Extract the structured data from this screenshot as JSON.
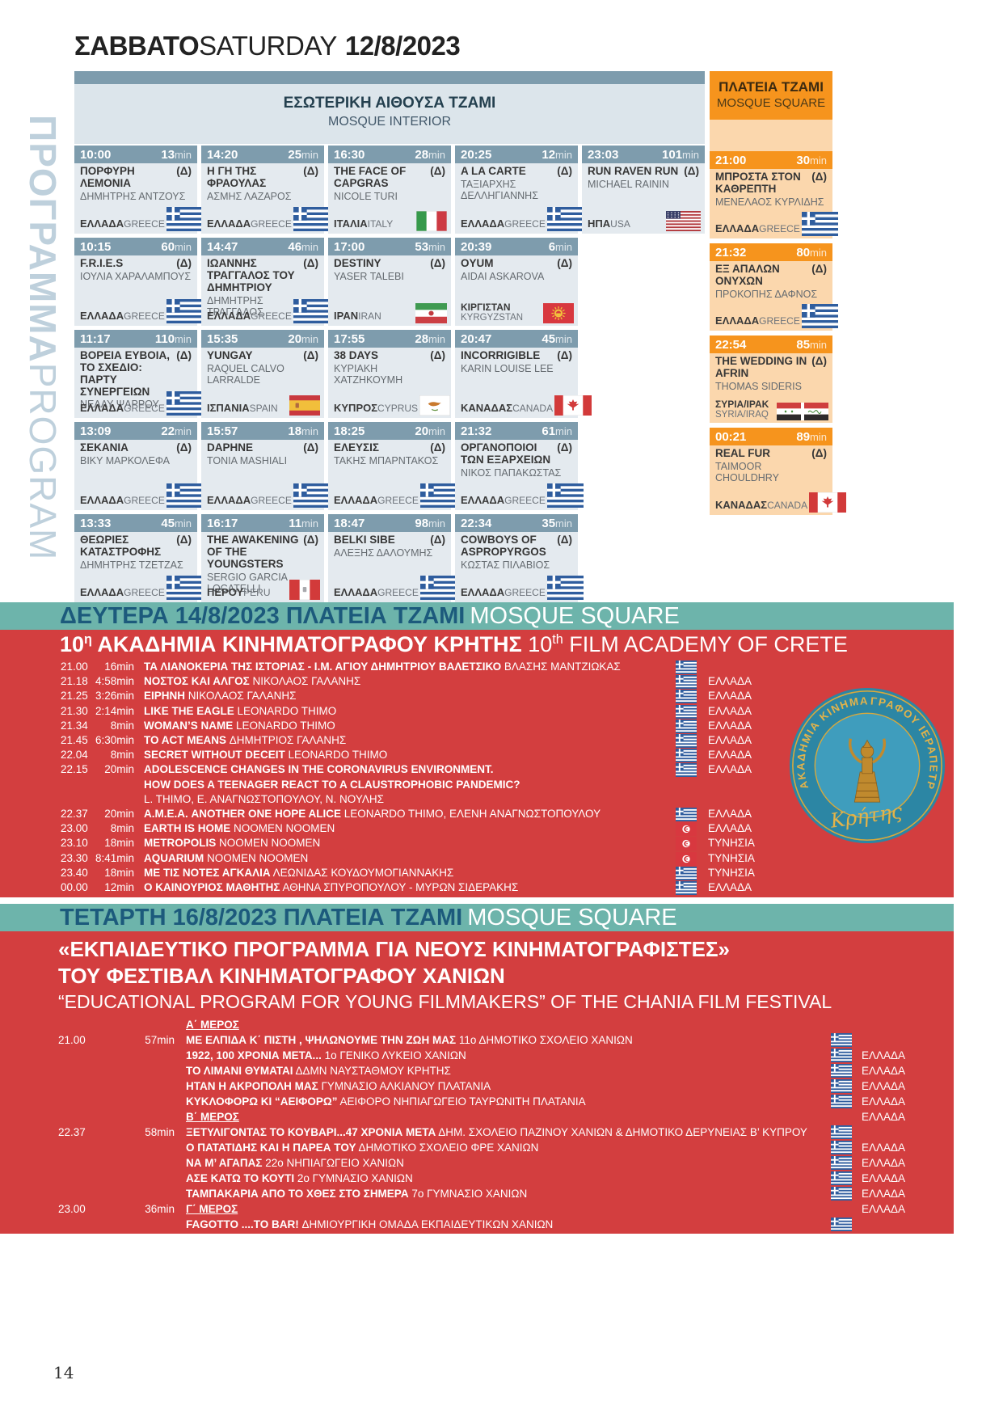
{
  "colors": {
    "steel_blue": "#7e9cad",
    "panel_blue": "#dce5eb",
    "cell_blue": "#e4eaef",
    "orange": "#f6941d",
    "peach": "#fbd7ad",
    "red": "#d33e3f",
    "teal": "#6db4ab",
    "band_text_blue": "#1c5a7c",
    "vertical_label_blue": "#bed0dc",
    "logo_gold": "#e3b34a"
  },
  "page_header": {
    "day_gr": "ΣΑΒΒΑΤΟ",
    "day_en": "SATURDAY",
    "date": "12/8/2023"
  },
  "vertical_label": {
    "gr": "ΠΡΟΓΡΑΜΜΑ",
    "en": "PROGRAM"
  },
  "interior_header": {
    "gr": "ΕΣΩΤΕΡΙΚΗ ΑΙΘΟΥΣΑ ΤΖΑΜΙ",
    "en": "MOSQUE INTERIOR"
  },
  "square_header": {
    "gr": "ΠΛΑΤΕΙΑ ΤΖΑΜΙ",
    "en": "MOSQUE SQUARE"
  },
  "grid": {
    "interior_columns": [
      [
        {
          "time": "10:00",
          "dur": "13",
          "title": "ΠΟΡΦΥΡΗ ΛΕΜΟΝΙΑ",
          "delta": "(Δ)",
          "director": "ΔΗΜΗΤΡΗΣ ΑΝΤΖΟΥΣ",
          "country_gr": "ΕΛΛΑΔΑ",
          "country_en": "GREECE",
          "flag": "gr"
        },
        {
          "time": "10:15",
          "dur": "60",
          "title": "F.R.I.E.S",
          "delta": "(Δ)",
          "director": "ΙΟΥΛΙΑ ΧΑΡΑΛΑΜΠΟΥΣ",
          "country_gr": "ΕΛΛΑΔΑ",
          "country_en": "GREECE",
          "flag": "gr"
        },
        {
          "time": "11:17",
          "dur": "110",
          "title": "ΒΟΡΕΙΑ ΕΥΒΟΙΑ, ΤΟ ΣΧΕΔΙΟ: ΠΑΡΤΥ ΣΥΝΕΡΓΕΙΩΝ",
          "delta": "(Δ)",
          "director": "ΝΕΛΛΥ ΨΑΡΡΟΥ",
          "country_gr": "ΕΛΛΑΔΑ",
          "country_en": "GREECE",
          "flag": "gr"
        },
        {
          "time": "13:09",
          "dur": "22",
          "title": "ΣΕΚΑΝΙΑ",
          "delta": "(Δ)",
          "director": "ΒΙΚΥ ΜΑΡΚΟΛΕΦΑ",
          "country_gr": "ΕΛΛΑΔΑ",
          "country_en": "GREECE",
          "flag": "gr"
        },
        {
          "time": "13:33",
          "dur": "45",
          "title": "ΘΕΩΡΙΕΣ ΚΑΤΑΣΤΡΟΦΗΣ",
          "delta": "(Δ)",
          "director": "ΔΗΜΗΤΡΗΣ ΤΖΕΤΖΑΣ",
          "country_gr": "ΕΛΛΑΔΑ",
          "country_en": "GREECE",
          "flag": "gr"
        }
      ],
      [
        {
          "time": "14:20",
          "dur": "25",
          "title": "Η ΓΗ ΤΗΣ ΦΡΑΟΥΛΑΣ",
          "delta": "(Δ)",
          "director": "ΑΣΜΗΣ ΛΑΖΑΡΟΣ",
          "country_gr": "ΕΛΛΑΔΑ",
          "country_en": "GREECE",
          "flag": "gr"
        },
        {
          "time": "14:47",
          "dur": "46",
          "title": "ΙΩΑΝΝΗΣ ΤΡΑΓΓΑΛΟΣ ΤΟΥ ΔΗΜΗΤΡΙΟΥ",
          "delta": "(Δ)",
          "director": "ΔΗΜΗΤΡΗΣ ΤΡΑΓΓΑΛΟΣ",
          "country_gr": "ΕΛΛΑΔΑ",
          "country_en": "GREECE",
          "flag": "gr"
        },
        {
          "time": "15:35",
          "dur": "20",
          "title": "YUNGAY",
          "delta": "(Δ)",
          "director": "RAQUEL CALVO LARRALDE",
          "country_gr": "ΙΣΠΑΝΙΑ",
          "country_en": "SPAIN",
          "flag": "es"
        },
        {
          "time": "15:57",
          "dur": "18",
          "title": "DAPHNE",
          "delta": "(Δ)",
          "director": "TONIA MASHIALI",
          "country_gr": "ΕΛΛΑΔΑ",
          "country_en": "GREECE",
          "flag": "gr"
        },
        {
          "time": "16:17",
          "dur": "11",
          "title": "THE AWAKENING OF THE YOUNGSTERS",
          "delta": "(Δ)",
          "director": "SERGIO GARCIA LOCATELLI",
          "country_gr": "ΠΕΡΟΥ",
          "country_en": "PERU",
          "flag": "pe"
        }
      ],
      [
        {
          "time": "16:30",
          "dur": "28",
          "title": "THE FACE OF CAPGRAS",
          "delta": "(Δ)",
          "director": "NICOLE TURI",
          "country_gr": "ΙΤΑΛΙΑ",
          "country_en": "ITALY",
          "flag": "it"
        },
        {
          "time": "17:00",
          "dur": "53",
          "title": "DESTINY",
          "delta": "(Δ)",
          "director": "YASER TALEBI",
          "country_gr": "ΙΡΑΝ",
          "country_en": "IRAN",
          "flag": "ir"
        },
        {
          "time": "17:55",
          "dur": "28",
          "title": "38 DAYS",
          "delta": "(Δ)",
          "director": "ΚΥΡΙΑΚΗ ΧΑΤΖΗΚΟΥΜΗ",
          "country_gr": "ΚΥΠΡΟΣ",
          "country_en": "CYPRUS",
          "flag": "cy"
        },
        {
          "time": "18:25",
          "dur": "20",
          "title": "ΕΛΕΥΣΙΣ",
          "delta": "(Δ)",
          "director": "ΤΑΚΗΣ ΜΠΑΡΝΤΑΚΟΣ",
          "country_gr": "ΕΛΛΑΔΑ",
          "country_en": "GREECE",
          "flag": "gr"
        },
        {
          "time": "18:47",
          "dur": "98",
          "title": "BELKI SIBE",
          "delta": "(Δ)",
          "director": "ΑΛΕΞΗΣ ΔΑΛΟΥΜΗΣ",
          "country_gr": "ΕΛΛΑΔΑ",
          "country_en": "GREECE",
          "flag": "gr"
        }
      ],
      [
        {
          "time": "20:25",
          "dur": "12",
          "title": "A LA CARTE",
          "delta": "(Δ)",
          "director": "ΤΑΞΙΑΡΧΗΣ ΔΕΛΛΗΓΙΑΝΝΗΣ",
          "country_gr": "ΕΛΛΑΔΑ",
          "country_en": "GREECE",
          "flag": "gr"
        },
        {
          "time": "20:39",
          "dur": "6",
          "title": "OYUM",
          "delta": "(Δ)",
          "director": "AIDAI ASKAROVA",
          "country_gr": "ΚΙΡΓΙΣΤΑΝ",
          "country_en": "KYRGYZSTAN",
          "flag": "kg",
          "country_two": true
        },
        {
          "time": "20:47",
          "dur": "45",
          "title": "INCORRIGIBLE",
          "delta": "(Δ)",
          "director": "KARIN LOUISE LEE",
          "country_gr": "ΚΑΝΑΔΑΣ",
          "country_en": "CANADA",
          "flag": "ca"
        },
        {
          "time": "21:32",
          "dur": "61",
          "title": "ΟΡΓΑΝΟΠΟΙΟΙ ΤΩΝ ΕΞΑΡΧΕΙΩΝ",
          "delta": "(Δ)",
          "director": "ΝΙΚΟΣ ΠΑΠΑΚΩΣΤΑΣ",
          "country_gr": "ΕΛΛΑΔΑ",
          "country_en": "GREECE",
          "flag": "gr"
        },
        {
          "time": "22:34",
          "dur": "35",
          "title": "COWBOYS OF ASPROPYRGOS",
          "delta": "(Δ)",
          "director": "ΚΩΣΤΑΣ ΠΙΛΑΒΙΟΣ",
          "country_gr": "ΕΛΛΑΔΑ",
          "country_en": "GREECE",
          "flag": "gr"
        }
      ],
      [
        {
          "time": "23:03",
          "dur": "101",
          "title": "RUN RAVEN RUN",
          "delta": "(Δ)",
          "director": "MICHAEL RAININ",
          "country_gr": "ΗΠΑ",
          "country_en": "USA",
          "flag": "us"
        }
      ]
    ],
    "square_column": [
      {
        "time": "21:00",
        "dur": "30",
        "title": "ΜΠΡΟΣΤΑ ΣΤΟΝ ΚΑΘΡΕΠΤΗ",
        "delta": "(Δ)",
        "director": "ΜΕΝΕΛΑΟΣ ΚΥΡΛΙΔΗΣ",
        "country_gr": "ΕΛΛΑΔΑ",
        "country_en": "GREECE",
        "flag": "gr"
      },
      {
        "time": "21:32",
        "dur": "80",
        "title": "ΕΞ ΑΠΑΛΩΝ ΟΝΥΧΩΝ",
        "delta": "(Δ)",
        "director": "ΠΡΟΚΟΠΗΣ ΔΑΦΝΟΣ",
        "country_gr": "ΕΛΛΑΔΑ",
        "country_en": "GREECE",
        "flag": "gr"
      },
      {
        "time": "22:54",
        "dur": "85",
        "title": "THE WEDDING IN AFRIN",
        "delta": "(Δ)",
        "director": "THOMAS SIDERIS",
        "country_gr": "ΣΥΡΙΑ/ΙΡΑΚ",
        "country_en": "SYRIA/IRAQ",
        "flag": "sy-iq",
        "country_two": true
      },
      {
        "time": "00:21",
        "dur": "89",
        "title": "REAL FUR",
        "delta": "(Δ)",
        "director": "TAIMOOR CHOULDHRY",
        "country_gr": "ΚΑΝΑΔΑΣ",
        "country_en": "CANADA",
        "flag": "ca"
      }
    ]
  },
  "monday": {
    "banner_gr": "ΔΕΥΤΕΡΑ 14/8/2023 ΠΛΑΤΕΙΑ ΤΖΑΜΙ",
    "banner_en": "MOSQUE SQUARE",
    "title_gr_num": "10",
    "title_gr_sup": "η",
    "title_gr_rest": " ΑΚΑΔΗΜΙΑ ΚΙΝΗΜΑΤΟΓΡΑΦΟΥ ΚΡΗΤΗΣ",
    "title_en_num": "10",
    "title_en_sup": "th",
    "title_en_rest": " FILM ACADEMY OF CRETE",
    "rows": [
      {
        "time": "21.00",
        "dur": "16min",
        "lines": [
          {
            "b": "ΤΑ ΛΙΑΝΟΚΕΡΙΑ ΤΗΣ ΙΣΤΟΡΙΑΣ - Ι.Μ. ΑΓΙΟΥ ΔΗΜΗΤΡΙΟΥ ΒΑΛΕΤΣΙΚΟ",
            "r": " ΒΛΑΣΗΣ ΜΑΝΤΖΙΩΚΑΣ"
          }
        ],
        "country": "ΕΛΛΑΔΑ",
        "flag": "gr"
      },
      {
        "time": "21.18",
        "dur": "4:58min",
        "lines": [
          {
            "b": "ΝΟΣΤΟΣ ΚΑΙ ΑΛΓΟΣ",
            "r": " ΝΙΚΟΛΑΟΣ ΓΑΛΑΝΗΣ"
          }
        ],
        "country": "ΕΛΛΑΔΑ",
        "flag": "gr"
      },
      {
        "time": "21.25",
        "dur": "3:26min",
        "lines": [
          {
            "b": "ΕΙΡΗΝΗ",
            "r": " ΝΙΚΟΛΑΟΣ ΓΑΛΑΝΗΣ"
          }
        ],
        "country": "ΕΛΛΑΔΑ",
        "flag": "gr"
      },
      {
        "time": "21.30",
        "dur": "2:14min",
        "lines": [
          {
            "b": "LIKE THE EAGLE",
            "r": " LEONARDO THIMO"
          }
        ],
        "country": "ΕΛΛΑΔΑ",
        "flag": "gr"
      },
      {
        "time": "21.34",
        "dur": "8min",
        "lines": [
          {
            "b": "WOMAN’S NAME",
            "r": " LEONARDO THIMO"
          }
        ],
        "country": "ΕΛΛΑΔΑ",
        "flag": "gr"
      },
      {
        "time": "21.45",
        "dur": "6:30min",
        "lines": [
          {
            "b": "TO ACT MEANS",
            "r": " ΔΗΜΗΤΡΙΟΣ ΓΑΛΑΝΗΣ"
          }
        ],
        "country": "ΕΛΛΑΔΑ",
        "flag": "gr"
      },
      {
        "time": "22.04",
        "dur": "8min",
        "lines": [
          {
            "b": "SECRET WITHOUT DECEIT",
            "r": " LEONARDO THIMO"
          }
        ],
        "country": "ΕΛΛΑΔΑ",
        "flag": "gr"
      },
      {
        "time": "22.15",
        "dur": "20min",
        "lines": [
          {
            "b": "ADOLESCENCE CHANGES IN THE CORONAVIRUS ENVIRONMENT."
          },
          {
            "b": "HOW DOES A TEENAGER REACT TO A CLAUSTROPHOBIC PANDEMIC?"
          },
          {
            "r": "L. THIMO, Ε. ΑΝΑΓΝΩΣΤΟΠΟΥΛΟΥ, Ν. ΝΟΥΛΗΣ"
          }
        ],
        "country": "ΕΛΛΑΔΑ",
        "flag": "gr"
      },
      {
        "time": "22.37",
        "dur": "20min",
        "lines": [
          {
            "b": "Α.Μ.Ε.Α. ANOTHER ONE HOPE ALICE",
            "r": " LEONARDO THIMO, ΕΛΕΝΗ ΑΝΑΓΝΩΣΤΟΠΟΥΛΟΥ"
          }
        ],
        "country": "ΕΛΛΑΔΑ",
        "flag": "gr"
      },
      {
        "time": "23.00",
        "dur": "8min",
        "lines": [
          {
            "b": "EARTH IS HOME",
            "r": " NOOMEN NOOMEN"
          }
        ],
        "country": "ΤΥΝΗΣΙΑ",
        "flag": "tn"
      },
      {
        "time": "23.10",
        "dur": "18min",
        "lines": [
          {
            "b": "METROPOLIS",
            "r": " NOOMEN NOOMEN"
          }
        ],
        "country": "ΤΥΝΗΣΙΑ",
        "flag": "tn"
      },
      {
        "time": "23.30",
        "dur": "8:41min",
        "lines": [
          {
            "b": "AQUARIUM",
            "r": " NOOMEN NOOMEN"
          }
        ],
        "country": "ΤΥΝΗΣΙΑ",
        "flag": "tn"
      },
      {
        "time": "23.40",
        "dur": "18min",
        "lines": [
          {
            "b": "ΜΕ ΤΙΣ ΝΟΤΕΣ ΑΓΚΑΛΙΑ",
            "r": " ΛΕΩΝΙΔΑΣ ΚΟΥΔΟΥΜΟΓΙΑΝΝΑΚΗΣ"
          }
        ],
        "country": "ΕΛΛΑΔΑ",
        "flag": "gr"
      },
      {
        "time": "00.00",
        "dur": "12min",
        "lines": [
          {
            "b": "Ο ΚΑΙΝΟΥΡΙΟΣ ΜΑΘΗΤΗΣ",
            "r": " ΑΘΗΝΑ ΣΠΥΡΟΠΟΥΛΟΥ - ΜΥΡΩΝ ΣΙΔΕΡΑΚΗΣ"
          }
        ],
        "country": "ΕΛΛΑΔΑ",
        "flag": "gr"
      }
    ]
  },
  "wednesday": {
    "banner_gr": "ΤΕΤΑΡΤΗ 16/8/2023 ΠΛΑΤΕΙΑ ΤΖΑΜΙ",
    "banner_en": "MOSQUE SQUARE",
    "heading_lines": [
      "«ΕΚΠΑΙΔΕΥΤΙΚΟ ΠΡΟΓΡΑΜΜΑ ΓΙΑ ΝΕΟΥΣ ΚΙΝΗΜΑΤΟΓΡΑΦΙΣΤΕΣ»",
      "ΤΟΥ ΦΕΣΤΙΒΑΛ ΚΙΝΗΜΑΤΟΓΡΑΦΟΥ ΧΑΝΙΩΝ",
      "“EDUCATIONAL PROGRAM FOR YOUNG FILMMAKERS” OF THE CHANIA FILM FESTIVAL"
    ],
    "rows": [
      {
        "part": "Α΄ ΜΕΡΟΣ"
      },
      {
        "time": "21.00",
        "dur": "57min",
        "lines": [
          {
            "b": "ΜΕ ΕΛΠΙΔΑ Κ΄ ΠΙΣΤΗ , ΨΗΛΩΝΟΥΜΕ ΤΗΝ ΖΩΗ ΜΑΣ",
            "r": " 11ο ΔΗΜΟΤΙΚΟ ΣΧΟΛΕΙΟ ΧΑΝΙΩΝ"
          }
        ],
        "country": "ΕΛΛΑΔΑ",
        "flag": "gr"
      },
      {
        "lines": [
          {
            "b": "1922, 100 ΧΡΟΝΙΑ ΜΕΤΑ...",
            "r": " 1ο ΓΕΝΙΚΟ ΛΥΚΕΙΟ ΧΑΝΙΩΝ"
          }
        ],
        "country": "ΕΛΛΑΔΑ",
        "flag": "gr"
      },
      {
        "lines": [
          {
            "b": "ΤΟ ΛΙΜΑΝΙ ΘΥΜΑΤΑΙ",
            "r": " ΔΔΜΝ ΝΑΥΣΤΑΘΜΟΥ ΚΡΗΤΗΣ"
          }
        ],
        "country": "ΕΛΛΑΔΑ",
        "flag": "gr"
      },
      {
        "lines": [
          {
            "b": "ΗΤΑΝ Η ΑΚΡΟΠΟΛΗ ΜΑΣ",
            "r": " ΓΥΜΝΑΣΙΟ ΑΛΚΙΑΝΟΥ ΠΛΑΤΑΝΙΑ"
          }
        ],
        "country": "ΕΛΛΑΔΑ",
        "flag": "gr"
      },
      {
        "lines": [
          {
            "b": "ΚΥΚΛΟΦΟΡΩ ΚΙ “ΑΕΙΦΟΡΩ”",
            "r": " ΑΕΙΦΟΡΟ ΝΗΠΙΑΓΩΓΕΙΟ ΤΑΥΡΩΝΙΤΗ ΠΛΑΤΑΝΙΑ"
          }
        ],
        "country": "ΕΛΛΑΔΑ",
        "flag": "gr"
      },
      {
        "part": "Β΄ ΜΕΡΟΣ"
      },
      {
        "time": "22.37",
        "dur": "58min",
        "lines": [
          {
            "b": "ΞΕΤΥΛΙΓΟΝΤΑΣ ΤΟ ΚΟΥΒΑΡΙ...47 ΧΡΟΝΙΑ ΜΕΤΑ",
            "r": " ΔΗΜ. ΣΧΟΛΕΙΟ ΠΑΖΙΝΟΥ ΧΑΝΙΩΝ & ΔΗΜΟΤΙΚΟ ΔΕΡΥΝΕΙΑΣ Β’ ΚΥΠΡΟΥ"
          }
        ],
        "country": "ΕΛΛΑΔΑ",
        "flag": "gr"
      },
      {
        "lines": [
          {
            "b": "Ο ΠΑΤΑΤΙΔΗΣ ΚΑΙ Η ΠΑΡΕΑ ΤΟΥ",
            "r": " ΔΗΜΟΤΙΚΟ ΣΧΟΛΕΙΟ ΦΡΕ ΧΑΝΙΩΝ"
          }
        ],
        "country": "ΕΛΛΑΔΑ",
        "flag": "gr"
      },
      {
        "lines": [
          {
            "b": "ΝΑ Μ’ ΑΓΑΠΑΣ",
            "r": " 22ο ΝΗΠΙΑΓΩΓΕΙΟ ΧΑΝΙΩΝ"
          }
        ],
        "country": "ΕΛΛΑΔΑ",
        "flag": "gr"
      },
      {
        "lines": [
          {
            "b": "ΑΣΕ ΚΑΤΩ ΤΟ ΚΟΥΤΙ",
            "r": " 2ο ΓΥΜΝΑΣΙΟ ΧΑΝΙΩΝ"
          }
        ],
        "country": "ΕΛΛΑΔΑ",
        "flag": "gr"
      },
      {
        "lines": [
          {
            "b": "ΤΑΜΠΑΚΑΡΙΑ ΑΠΟ ΤΟ ΧΘΕΣ ΣΤΟ ΣΗΜΕΡΑ",
            "r": " 7ο ΓΥΜΝΑΣΙΟ ΧΑΝΙΩΝ"
          }
        ],
        "country": "ΕΛΛΑΔΑ",
        "flag": "gr"
      },
      {
        "part": "Γ΄ ΜΕΡΟΣ",
        "time": "23.00",
        "dur": "36min"
      },
      {
        "lines": [
          {
            "b": "FAGOTTO ....ΤΟ BAR!",
            "r": " ΔΗΜΙΟΥΡΓΙΚΗ ΟΜΑΔΑ ΕΚΠΑΙΔΕΥΤΙΚΩΝ ΧΑΝΙΩΝ"
          }
        ],
        "country": "ΕΛΛΑΔΑ",
        "flag": "gr"
      }
    ]
  },
  "logo": {
    "text_left": "ΑΚΑΔΗΜΙΑ ΚΙΝΗΜΑΤΟ",
    "text_right": "ΓΡΑΦΟΥ ΙΕΡΑΠΕΤΡΑΣ",
    "script": "Κρήτης"
  },
  "page_number": "14"
}
